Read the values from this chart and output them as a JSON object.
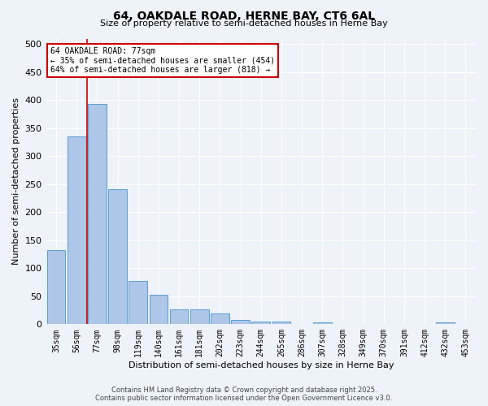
{
  "title_line1": "64, OAKDALE ROAD, HERNE BAY, CT6 6AL",
  "title_line2": "Size of property relative to semi-detached houses in Herne Bay",
  "xlabel": "Distribution of semi-detached houses by size in Herne Bay",
  "ylabel": "Number of semi-detached properties",
  "categories": [
    "35sqm",
    "56sqm",
    "77sqm",
    "98sqm",
    "119sqm",
    "140sqm",
    "161sqm",
    "181sqm",
    "202sqm",
    "223sqm",
    "244sqm",
    "265sqm",
    "286sqm",
    "307sqm",
    "328sqm",
    "349sqm",
    "370sqm",
    "391sqm",
    "412sqm",
    "432sqm",
    "453sqm"
  ],
  "values": [
    133,
    335,
    393,
    241,
    77,
    52,
    27,
    27,
    19,
    8,
    5,
    5,
    0,
    4,
    0,
    0,
    0,
    0,
    0,
    4,
    0
  ],
  "bar_color": "#aec6e8",
  "bar_edge_color": "#5a9fd4",
  "red_line_index": 2,
  "annotation_text": "64 OAKDALE ROAD: 77sqm\n← 35% of semi-detached houses are smaller (454)\n64% of semi-detached houses are larger (818) →",
  "annotation_box_color": "#ffffff",
  "annotation_box_edge": "#cc0000",
  "ylim": [
    0,
    510
  ],
  "yticks": [
    0,
    50,
    100,
    150,
    200,
    250,
    300,
    350,
    400,
    450,
    500
  ],
  "background_color": "#eef2f9",
  "grid_color": "#ffffff",
  "footer_line1": "Contains HM Land Registry data © Crown copyright and database right 2025.",
  "footer_line2": "Contains public sector information licensed under the Open Government Licence v3.0."
}
